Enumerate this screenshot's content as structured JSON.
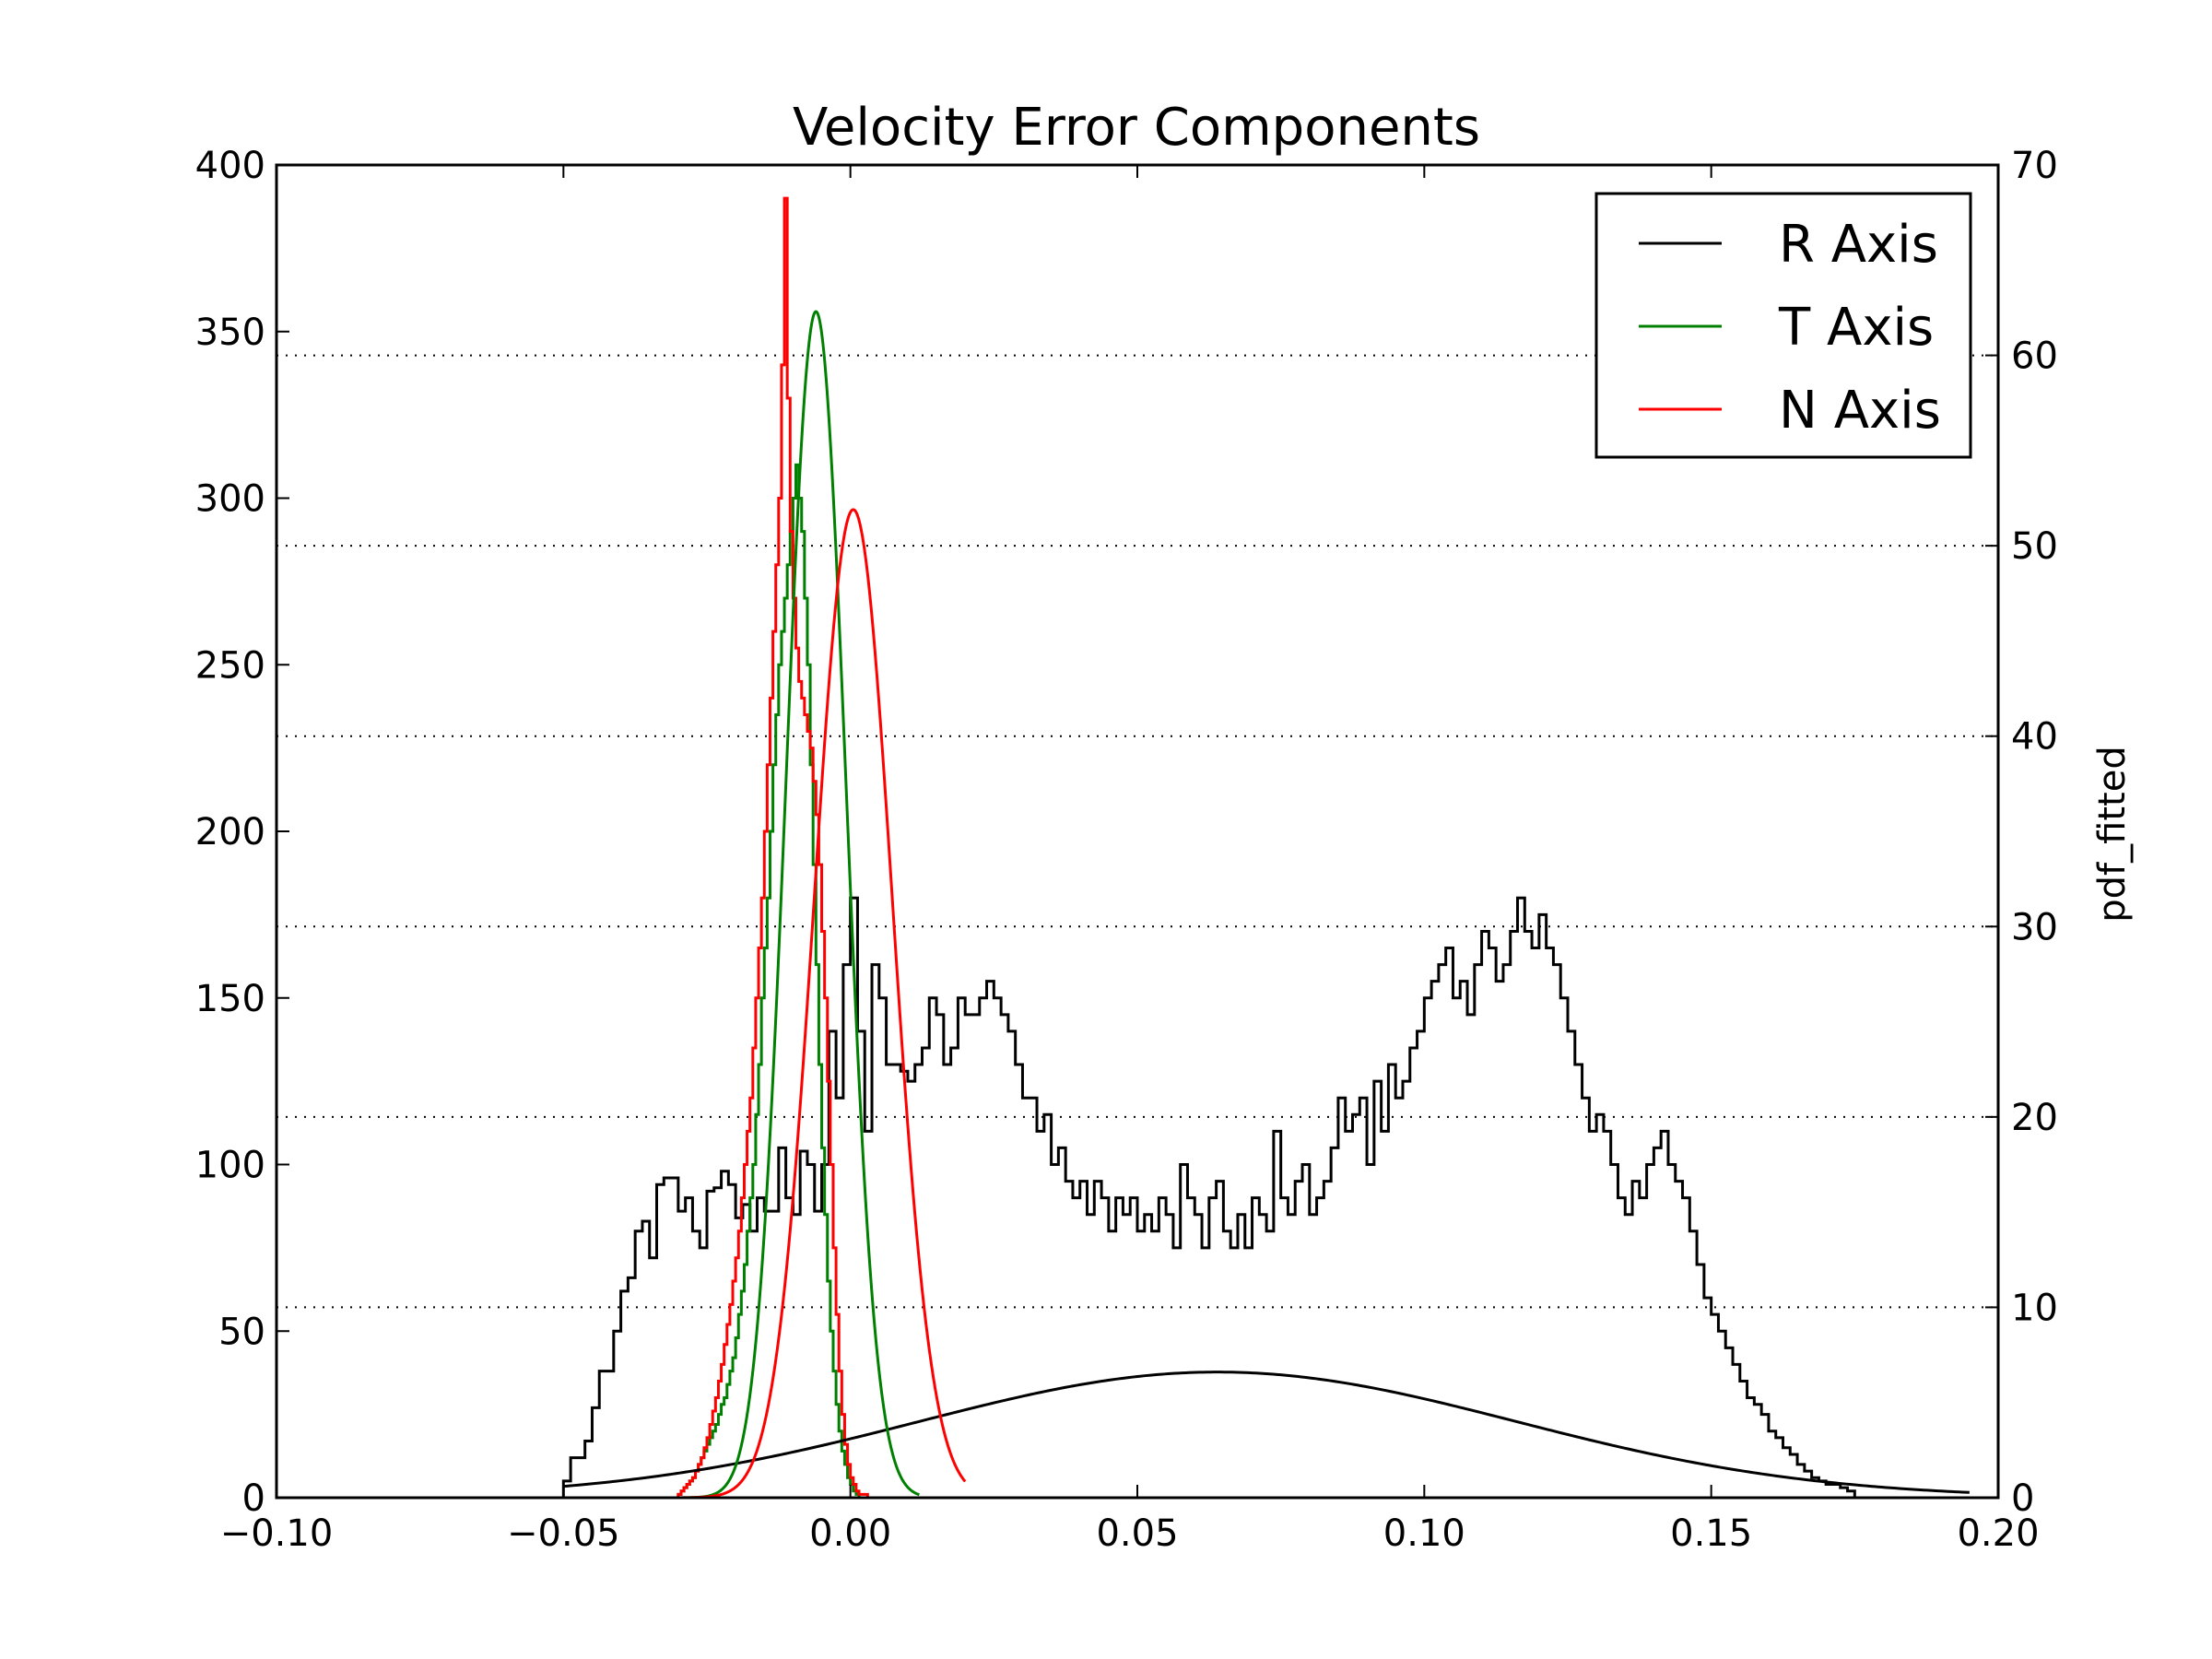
{
  "chart_data": {
    "type": "histogram",
    "title": "Velocity Error Components",
    "xlabel": "",
    "ylabel": "",
    "ylabel_right": "pdf_fitted",
    "xlim": [
      -0.1,
      0.2
    ],
    "ylim": [
      0,
      400
    ],
    "ylim_right": [
      0,
      70
    ],
    "x_ticks": [
      "−0.10",
      "−0.05",
      "0.00",
      "0.05",
      "0.10",
      "0.15",
      "0.20"
    ],
    "x_tick_values": [
      -0.1,
      -0.05,
      0.0,
      0.05,
      0.1,
      0.15,
      0.2
    ],
    "y_ticks": [
      "0",
      "50",
      "100",
      "150",
      "200",
      "250",
      "300",
      "350",
      "400"
    ],
    "y_tick_values": [
      0,
      50,
      100,
      150,
      200,
      250,
      300,
      350,
      400
    ],
    "y_right_ticks": [
      "0",
      "10",
      "20",
      "30",
      "40",
      "50",
      "60",
      "70"
    ],
    "y_right_tick_values": [
      0,
      10,
      20,
      30,
      40,
      50,
      60,
      70
    ],
    "grid": "dotted horizontal lines at right-axis ticks",
    "legend": {
      "placement": "top-right",
      "entries": [
        {
          "label": "R Axis",
          "color": "#000000"
        },
        {
          "label": "T Axis",
          "color": "#008000"
        },
        {
          "label": "N Axis",
          "color": "#ff0000"
        }
      ]
    },
    "histograms": [
      {
        "name": "R Axis",
        "color": "#000000",
        "x_start": -0.05,
        "bin_width": 0.00125,
        "counts": [
          5,
          12,
          12,
          17,
          27,
          38,
          38,
          50,
          62,
          66,
          80,
          83,
          72,
          94,
          96,
          96,
          86,
          90,
          80,
          75,
          92,
          93,
          98,
          94,
          84,
          88,
          80,
          90,
          86,
          86,
          105,
          90,
          85,
          104,
          100,
          86,
          100,
          140,
          120,
          160,
          180,
          140,
          110,
          160,
          150,
          130,
          130,
          128,
          125,
          130,
          135,
          150,
          145,
          130,
          135,
          150,
          145,
          145,
          150,
          155,
          150,
          145,
          140,
          130,
          120,
          120,
          110,
          115,
          100,
          105,
          95,
          90,
          95,
          85,
          95,
          90,
          80,
          90,
          85,
          90,
          80,
          85,
          80,
          90,
          85,
          75,
          100,
          90,
          85,
          75,
          90,
          95,
          80,
          75,
          85,
          75,
          90,
          85,
          80,
          110,
          90,
          85,
          95,
          100,
          85,
          90,
          95,
          105,
          120,
          110,
          115,
          120,
          100,
          125,
          110,
          130,
          120,
          125,
          135,
          140,
          150,
          155,
          160,
          165,
          150,
          155,
          145,
          160,
          170,
          165,
          155,
          160,
          170,
          180,
          170,
          165,
          175,
          165,
          160,
          150,
          140,
          130,
          120,
          110,
          115,
          110,
          100,
          90,
          85,
          95,
          90,
          100,
          105,
          110,
          100,
          95,
          90,
          80,
          70,
          60,
          55,
          50,
          45,
          40,
          35,
          30,
          28,
          25,
          20,
          18,
          15,
          13,
          10,
          8,
          6,
          5,
          4,
          4,
          3,
          2
        ]
      },
      {
        "name": "T Axis",
        "color": "#008000",
        "x_start": -0.03,
        "bin_width": 0.0005,
        "counts": [
          1,
          2,
          3,
          4,
          5,
          6,
          8,
          10,
          12,
          14,
          16,
          18,
          20,
          22,
          25,
          28,
          30,
          34,
          38,
          42,
          48,
          55,
          62,
          70,
          80,
          90,
          100,
          115,
          130,
          150,
          165,
          180,
          200,
          220,
          235,
          250,
          260,
          270,
          280,
          290,
          300,
          310,
          300,
          290,
          270,
          250,
          220,
          190,
          160,
          130,
          105,
          85,
          65,
          50,
          38,
          28,
          20,
          14,
          10,
          6,
          4,
          2,
          1
        ]
      },
      {
        "name": "N Axis",
        "color": "#ff0000",
        "x_start": -0.03,
        "bin_width": 0.0005,
        "counts": [
          1,
          2,
          3,
          4,
          5,
          6,
          8,
          10,
          12,
          15,
          18,
          22,
          26,
          30,
          35,
          40,
          46,
          52,
          58,
          65,
          72,
          80,
          90,
          100,
          110,
          120,
          135,
          150,
          165,
          180,
          200,
          220,
          240,
          260,
          280,
          300,
          340,
          390,
          330,
          290,
          270,
          255,
          245,
          240,
          235,
          230,
          225,
          215,
          205,
          190,
          170,
          150,
          125,
          100,
          75,
          55,
          38,
          25,
          16,
          10,
          6,
          4,
          2,
          1,
          1,
          1
        ]
      }
    ],
    "fitted_curves": [
      {
        "name": "R Axis",
        "color": "#000000",
        "axis": "right",
        "mean": 0.064,
        "sigma": 0.052,
        "peak": 6.6,
        "x_range": [
          -0.05,
          0.195
        ]
      },
      {
        "name": "T Axis",
        "color": "#008000",
        "axis": "right",
        "mean": -0.006,
        "sigma": 0.0052,
        "peak": 62.3,
        "x_range": [
          -0.03,
          0.012
        ]
      },
      {
        "name": "N Axis",
        "color": "#ff0000",
        "axis": "right",
        "mean": 0.0005,
        "sigma": 0.0068,
        "peak": 51.9,
        "x_range": [
          -0.03,
          0.02
        ]
      }
    ]
  }
}
